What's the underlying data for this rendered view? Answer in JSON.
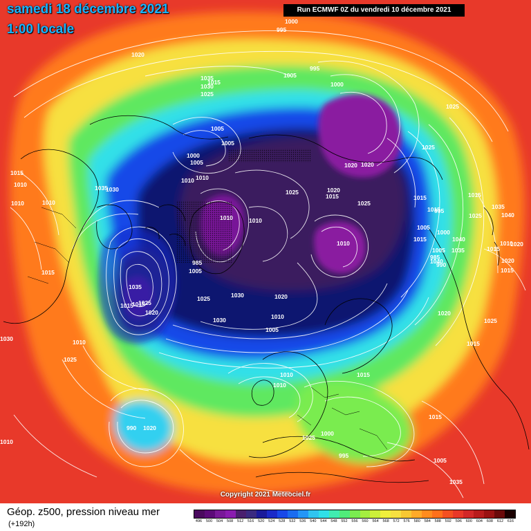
{
  "title": {
    "date": "samedi 18 décembre 2021",
    "local_time": "1:00 locale"
  },
  "run_info": "Run ECMWF 0Z du vendredi 10 décembre 2021",
  "copyright": "Copyright 2021 Meteociel.fr",
  "product": {
    "label": "Géop. z500, pression niveau mer",
    "forecast_hour": "(+192h)"
  },
  "colors": {
    "background": "#e8392a",
    "ring_orange": "#ff7a1a",
    "ring_yellow": "#f7e040",
    "ring_green": "#5ee860",
    "ring_cyan": "#30e0e8",
    "ring_blue": "#1848e8",
    "ring_navy": "#101870",
    "core_purple": "#3a1a5e",
    "low_magenta": "#8a1ca0",
    "isobar": "#ffffff",
    "coastline": "#000000"
  },
  "legend": {
    "values": [
      "496",
      "500",
      "504",
      "508",
      "512",
      "516",
      "520",
      "524",
      "528",
      "532",
      "536",
      "540",
      "544",
      "548",
      "552",
      "556",
      "560",
      "564",
      "568",
      "572",
      "576",
      "580",
      "584",
      "588",
      "592",
      "596",
      "600",
      "604",
      "608",
      "612",
      "616"
    ],
    "colors": [
      "#4a0a5e",
      "#5c0a78",
      "#781898",
      "#8a1cb0",
      "#4a1f6e",
      "#3a2a80",
      "#1a1a9a",
      "#1a2ac8",
      "#1848e8",
      "#1a6cf0",
      "#2496f6",
      "#30c4f0",
      "#30e0e8",
      "#40ecb0",
      "#50ec7a",
      "#7aec50",
      "#a4ee40",
      "#ccf03a",
      "#f0f03c",
      "#f7e040",
      "#f8c832",
      "#ffaa28",
      "#ff8c1e",
      "#ff701a",
      "#f45020",
      "#e83828",
      "#d22828",
      "#b81c1c",
      "#9a1212",
      "#6a0a0a",
      "#1a0000"
    ]
  },
  "map": {
    "pressure_labels": [
      {
        "text": "1000"
      },
      {
        "text": "995"
      },
      {
        "text": "995"
      },
      {
        "text": "1005"
      },
      {
        "text": "1015"
      },
      {
        "text": "1000"
      },
      {
        "text": "1020"
      },
      {
        "text": "1035"
      },
      {
        "text": "1030"
      },
      {
        "text": "1025"
      },
      {
        "text": "1025"
      },
      {
        "text": "1025"
      },
      {
        "text": "1005"
      },
      {
        "text": "1005"
      },
      {
        "text": "1000"
      },
      {
        "text": "1005"
      },
      {
        "text": "1010"
      },
      {
        "text": "1010"
      },
      {
        "text": "1015"
      },
      {
        "text": "1010"
      },
      {
        "text": "1010"
      },
      {
        "text": "1035"
      },
      {
        "text": "1030"
      },
      {
        "text": "1010"
      },
      {
        "text": "1020"
      },
      {
        "text": "1020"
      },
      {
        "text": "1025"
      },
      {
        "text": "1020"
      },
      {
        "text": "1015"
      },
      {
        "text": "1025"
      },
      {
        "text": "1015"
      },
      {
        "text": "1010"
      },
      {
        "text": "1010"
      },
      {
        "text": "1015"
      },
      {
        "text": "1015"
      },
      {
        "text": "1010"
      },
      {
        "text": "1005"
      },
      {
        "text": "995"
      },
      {
        "text": "1000"
      },
      {
        "text": "1005"
      },
      {
        "text": "985"
      },
      {
        "text": "990"
      },
      {
        "text": "985"
      },
      {
        "text": "1005"
      },
      {
        "text": "1025"
      },
      {
        "text": "1030"
      },
      {
        "text": "1020"
      },
      {
        "text": "1010"
      },
      {
        "text": "1005"
      },
      {
        "text": "1030"
      },
      {
        "text": "1035"
      },
      {
        "text": "1025"
      },
      {
        "text": "1020"
      },
      {
        "text": "1015"
      },
      {
        "text": "1015"
      },
      {
        "text": "1015"
      },
      {
        "text": "1010"
      },
      {
        "text": "1025"
      },
      {
        "text": "1015"
      },
      {
        "text": "1025"
      },
      {
        "text": "1035"
      },
      {
        "text": "1040"
      },
      {
        "text": "1010"
      },
      {
        "text": "1020"
      },
      {
        "text": "1015"
      },
      {
        "text": "1020"
      },
      {
        "text": "1015"
      },
      {
        "text": "1040"
      },
      {
        "text": "1035"
      },
      {
        "text": "1040"
      },
      {
        "text": "1020"
      },
      {
        "text": "1025"
      },
      {
        "text": "1015"
      },
      {
        "text": "1015"
      },
      {
        "text": "1010"
      },
      {
        "text": "1010"
      },
      {
        "text": "1015"
      },
      {
        "text": "1025"
      },
      {
        "text": "1000"
      },
      {
        "text": "995"
      },
      {
        "text": "990"
      },
      {
        "text": "1020"
      },
      {
        "text": "1030"
      },
      {
        "text": "1010"
      },
      {
        "text": "1005"
      },
      {
        "text": "1035"
      }
    ]
  }
}
